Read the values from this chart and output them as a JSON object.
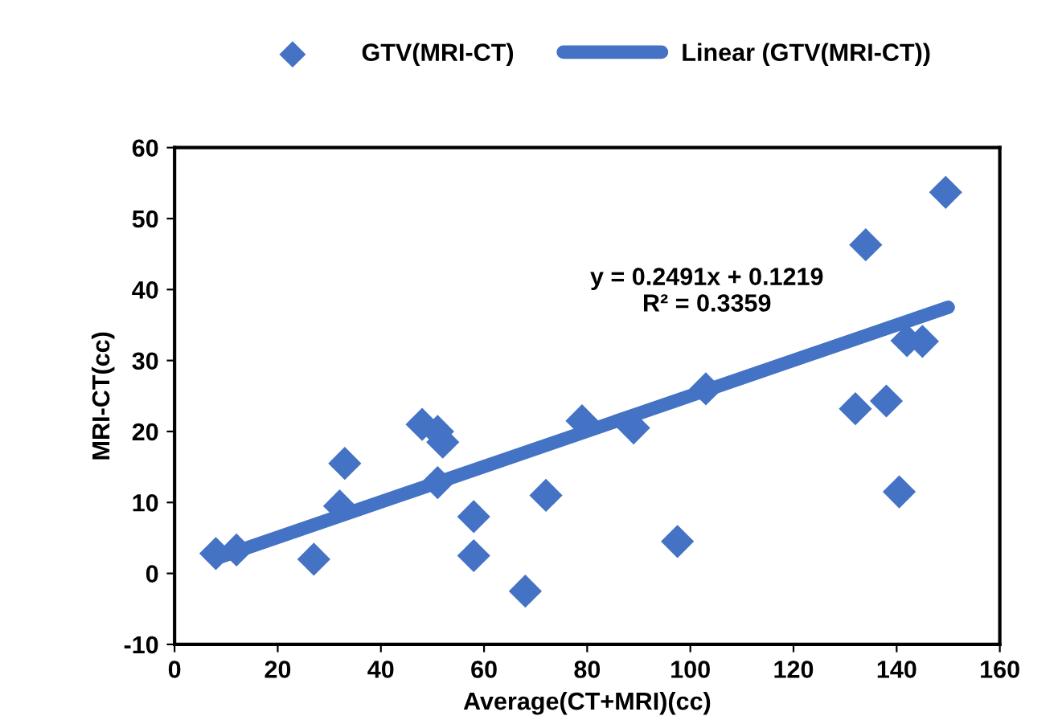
{
  "chart_data": {
    "type": "scatter",
    "xlabel": "Average(CT+MRI)(cc)",
    "ylabel": "MRI-CT(cc)",
    "series": [
      {
        "name": "GTV(MRI-CT)",
        "color": "#4472c4",
        "marker": "diamond",
        "x": [
          8,
          12,
          27,
          32,
          33,
          48,
          51,
          51,
          52,
          58,
          58,
          68,
          72,
          79,
          89,
          97.5,
          103,
          132,
          134,
          138,
          140.5,
          142,
          145,
          149.5
        ],
        "values": [
          2.8,
          3.3,
          2,
          9.5,
          15.5,
          21,
          12.8,
          20,
          18.5,
          8,
          2.5,
          -2.5,
          11,
          21.5,
          20.5,
          4.5,
          26,
          23.2,
          46.3,
          24.3,
          11.5,
          32.8,
          32.7,
          53.7
        ]
      },
      {
        "name": "Linear (GTV(MRI-CT))",
        "type": "line",
        "color": "#4472c4",
        "marker": "none",
        "line_style": "solid",
        "x": [
          8,
          150
        ],
        "values": [
          2.1,
          37.5
        ]
      }
    ],
    "annotations": [
      "y = 0.2491x + 0.1219\nR² = 0.3359"
    ],
    "xlim": [
      0,
      160
    ],
    "xticks": [
      0,
      20,
      40,
      60,
      80,
      100,
      120,
      140,
      160
    ],
    "ylim": [
      -10,
      60
    ],
    "yticks": [
      -10,
      0,
      10,
      20,
      30,
      40,
      50,
      60
    ],
    "grid": false,
    "legend": "top"
  }
}
